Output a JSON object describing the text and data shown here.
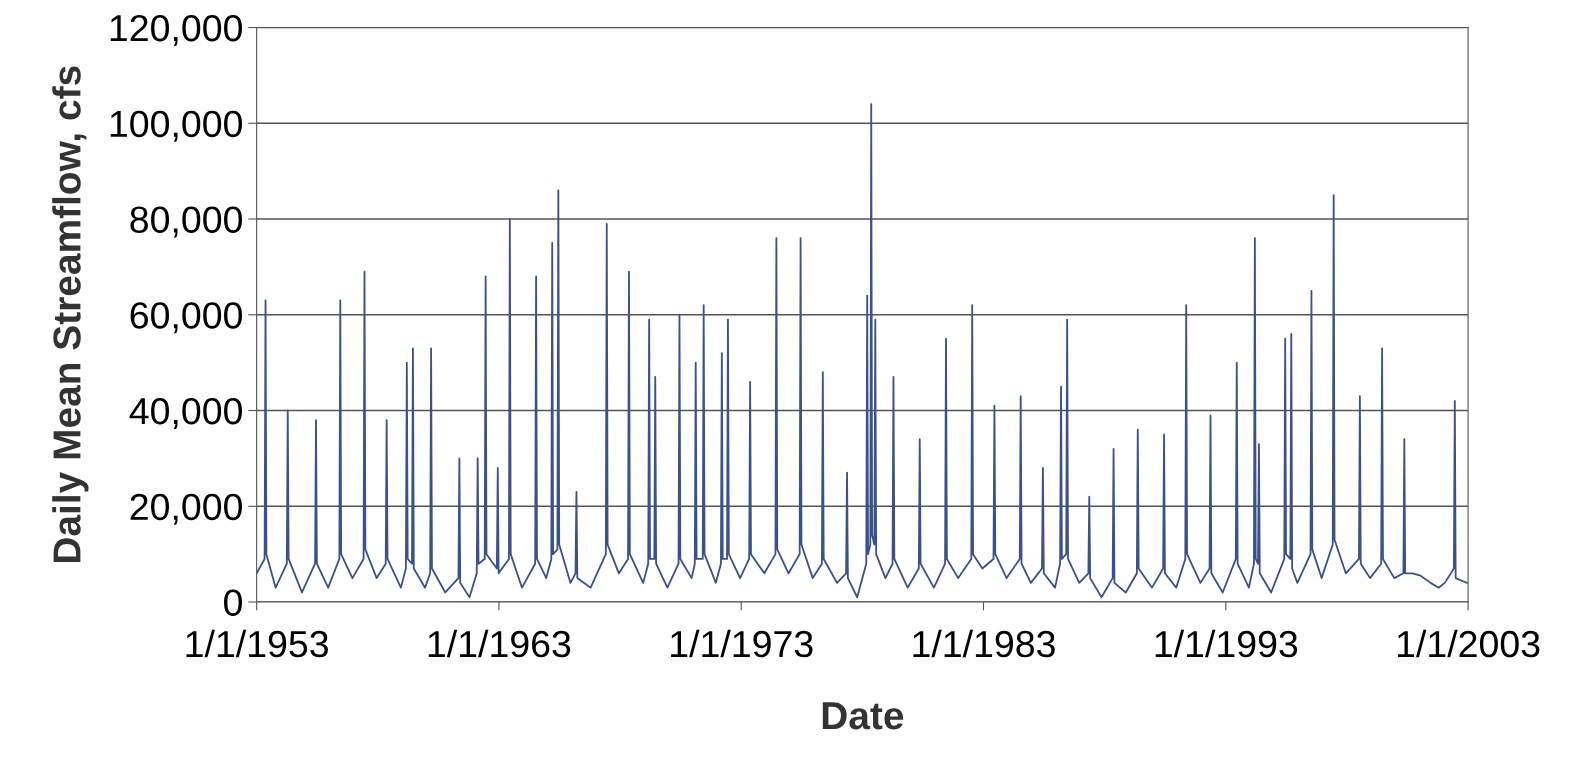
{
  "chart_data": {
    "type": "line",
    "xlabel": "Date",
    "ylabel": "Daily Mean Streamflow, cfs",
    "color": "#3b5189",
    "grid": "y",
    "marker": "none",
    "line_style": "solid",
    "xlim": [
      "1953-01-01",
      "2003-01-01"
    ],
    "xticks": [
      {
        "value": "1953-01-01",
        "label": "1/1/1953"
      },
      {
        "value": "1963-01-01",
        "label": "1/1/1963"
      },
      {
        "value": "1973-01-01",
        "label": "1/1/1973"
      },
      {
        "value": "1983-01-01",
        "label": "1/1/1983"
      },
      {
        "value": "1993-01-01",
        "label": "1/1/1993"
      },
      {
        "value": "2003-01-01",
        "label": "1/1/2003"
      }
    ],
    "ylim": [
      0,
      120000
    ],
    "yticks": [
      0,
      {
        "value": 20000,
        "label": "20,000"
      },
      {
        "value": 40000,
        "label": "40,000"
      },
      {
        "value": 60000,
        "label": "60,000"
      },
      {
        "value": 80000,
        "label": "80,000"
      },
      {
        "value": 100000,
        "label": "100,000"
      },
      {
        "value": 120000,
        "label": "120,000"
      }
    ],
    "x": [
      "1953-01-01",
      "1953-05-01",
      "1953-05-15",
      "1953-05-28",
      "1953-10-15",
      "1954-04-01",
      "1954-04-15",
      "1954-04-28",
      "1954-11-15",
      "1955-06-01",
      "1955-06-15",
      "1955-06-28",
      "1955-12-15",
      "1956-06-01",
      "1956-06-15",
      "1956-06-28",
      "1956-12-15",
      "1957-06-01",
      "1957-06-15",
      "1957-06-28",
      "1957-12-15",
      "1958-05-01",
      "1958-05-15",
      "1958-05-28",
      "1958-12-15",
      "1959-03-01",
      "1959-03-15",
      "1959-03-28",
      "1959-06-01",
      "1959-06-15",
      "1959-06-28",
      "1959-12-15",
      "1960-03-01",
      "1960-03-15",
      "1960-03-28",
      "1960-10-15",
      "1961-05-01",
      "1961-05-15",
      "1961-05-28",
      "1961-10-15",
      "1962-02-01",
      "1962-02-15",
      "1962-02-28",
      "1962-06-01",
      "1962-06-15",
      "1962-06-28",
      "1962-12-01",
      "1962-12-15",
      "1962-12-28",
      "1963-06-01",
      "1963-06-15",
      "1963-06-28",
      "1963-12-15",
      "1964-07-01",
      "1964-07-15",
      "1964-07-28",
      "1964-12-15",
      "1965-03-01",
      "1965-03-15",
      "1965-03-28",
      "1965-06-01",
      "1965-06-15",
      "1965-06-28",
      "1965-12-15",
      "1966-03-01",
      "1966-03-15",
      "1966-03-28",
      "1966-10-15",
      "1967-06-01",
      "1967-06-15",
      "1967-06-28",
      "1967-12-15",
      "1968-05-01",
      "1968-05-15",
      "1968-05-28",
      "1968-12-15",
      "1969-03-01",
      "1969-03-15",
      "1969-03-28",
      "1969-06-01",
      "1969-06-15",
      "1969-06-28",
      "1969-12-15",
      "1970-06-01",
      "1970-06-15",
      "1970-06-28",
      "1970-12-15",
      "1971-02-01",
      "1971-02-15",
      "1971-02-28",
      "1971-06-01",
      "1971-06-15",
      "1971-06-28",
      "1971-12-15",
      "1972-03-01",
      "1972-03-15",
      "1972-03-28",
      "1972-06-01",
      "1972-06-15",
      "1972-06-28",
      "1972-12-15",
      "1973-05-01",
      "1973-05-15",
      "1973-05-28",
      "1973-12-15",
      "1974-06-01",
      "1974-06-15",
      "1974-06-28",
      "1974-12-15",
      "1975-06-01",
      "1975-06-15",
      "1975-06-28",
      "1975-12-15",
      "1976-05-01",
      "1976-05-15",
      "1976-05-28",
      "1976-12-15",
      "1977-05-01",
      "1977-05-15",
      "1977-05-28",
      "1977-10-15",
      "1978-03-01",
      "1978-03-15",
      "1978-03-28",
      "1978-05-01",
      "1978-05-15",
      "1978-05-28",
      "1978-07-01",
      "1978-07-15",
      "1978-07-28",
      "1978-12-15",
      "1979-04-01",
      "1979-04-15",
      "1979-04-28",
      "1979-11-15",
      "1980-05-01",
      "1980-05-15",
      "1980-05-28",
      "1980-12-15",
      "1981-06-01",
      "1981-06-15",
      "1981-06-28",
      "1981-12-15",
      "1982-07-01",
      "1982-07-15",
      "1982-07-28",
      "1982-12-15",
      "1983-06-01",
      "1983-06-15",
      "1983-06-28",
      "1983-12-15",
      "1984-07-01",
      "1984-07-15",
      "1984-07-28",
      "1984-12-15",
      "1985-06-01",
      "1985-06-15",
      "1985-06-28",
      "1985-12-15",
      "1986-03-01",
      "1986-03-15",
      "1986-03-28",
      "1986-06-01",
      "1986-06-15",
      "1986-06-28",
      "1986-12-15",
      "1987-05-01",
      "1987-05-15",
      "1987-05-28",
      "1987-11-15",
      "1988-05-01",
      "1988-05-15",
      "1988-05-28",
      "1988-11-15",
      "1989-05-01",
      "1989-05-15",
      "1989-05-28",
      "1989-12-15",
      "1990-06-01",
      "1990-06-15",
      "1990-06-28",
      "1990-12-15",
      "1991-05-01",
      "1991-05-15",
      "1991-05-28",
      "1991-12-15",
      "1992-05-01",
      "1992-05-15",
      "1992-05-28",
      "1992-11-15",
      "1993-06-01",
      "1993-06-15",
      "1993-06-28",
      "1993-12-15",
      "1994-03-01",
      "1994-03-15",
      "1994-03-28",
      "1994-05-01",
      "1994-05-15",
      "1994-05-28",
      "1994-11-15",
      "1995-06-01",
      "1995-06-15",
      "1995-06-28",
      "1995-09-01",
      "1995-09-15",
      "1995-09-28",
      "1995-12-15",
      "1996-07-01",
      "1996-07-15",
      "1996-07-28",
      "1996-12-15",
      "1997-06-01",
      "1997-06-15",
      "1997-06-28",
      "1997-12-15",
      "1998-07-01",
      "1998-07-15",
      "1998-07-28",
      "1998-12-15",
      "1999-06-01",
      "1999-06-15",
      "1999-06-28",
      "1999-12-15",
      "2000-05-01",
      "2000-05-15",
      "2000-05-28",
      "2000-09-15",
      "2001-01-15",
      "2001-06-15",
      "2001-10-15",
      "2002-01-15",
      "2002-06-01",
      "2002-06-15",
      "2002-06-28",
      "2002-12-15"
    ],
    "values": [
      6000,
      9000,
      63000,
      10000,
      3000,
      8000,
      40000,
      9000,
      2000,
      8000,
      38000,
      8000,
      3000,
      9000,
      63000,
      10000,
      5000,
      9000,
      69000,
      11000,
      5000,
      8000,
      38000,
      9000,
      3000,
      7000,
      50000,
      9000,
      8000,
      53000,
      7000,
      3000,
      6000,
      53000,
      7000,
      2000,
      5000,
      30000,
      4000,
      1000,
      6000,
      30000,
      8000,
      9000,
      68000,
      10000,
      7000,
      28000,
      6000,
      9000,
      80000,
      10000,
      3000,
      8000,
      68000,
      9000,
      5000,
      9000,
      75000,
      10000,
      11000,
      86000,
      12000,
      4000,
      6000,
      23000,
      5000,
      3000,
      10000,
      79000,
      12000,
      6000,
      9000,
      69000,
      10000,
      4000,
      8000,
      59000,
      9000,
      9000,
      47000,
      8000,
      3000,
      8000,
      60000,
      9000,
      5000,
      8000,
      50000,
      9000,
      9000,
      62000,
      10000,
      4000,
      8000,
      52000,
      9000,
      9000,
      59000,
      10000,
      5000,
      9000,
      46000,
      10000,
      6000,
      10000,
      76000,
      11000,
      6000,
      10000,
      76000,
      12000,
      5000,
      8000,
      48000,
      9000,
      4000,
      6000,
      27000,
      5000,
      1000,
      8000,
      64000,
      10000,
      12000,
      104000,
      14000,
      12000,
      59000,
      10000,
      5000,
      8000,
      47000,
      9000,
      3000,
      7000,
      34000,
      8000,
      3000,
      8000,
      55000,
      9000,
      5000,
      9000,
      62000,
      10000,
      7000,
      9000,
      41000,
      10000,
      5000,
      9000,
      43000,
      8000,
      4000,
      7000,
      28000,
      6000,
      3000,
      8000,
      45000,
      9000,
      10000,
      59000,
      9000,
      4000,
      6000,
      22000,
      5000,
      1000,
      5000,
      32000,
      4000,
      2000,
      6000,
      36000,
      7000,
      3000,
      7000,
      35000,
      6000,
      3000,
      9000,
      62000,
      10000,
      4000,
      7000,
      39000,
      6000,
      2000,
      9000,
      50000,
      8000,
      3000,
      8000,
      76000,
      9000,
      8000,
      33000,
      6000,
      2000,
      9000,
      55000,
      10000,
      9000,
      56000,
      7000,
      4000,
      10000,
      65000,
      11000,
      5000,
      12000,
      85000,
      13000,
      6000,
      9000,
      43000,
      8000,
      5000,
      8000,
      53000,
      9000,
      5000,
      6000,
      34000,
      6000,
      6000,
      5500,
      4000,
      3000,
      4000,
      7000,
      42000,
      5000,
      4000
    ]
  }
}
